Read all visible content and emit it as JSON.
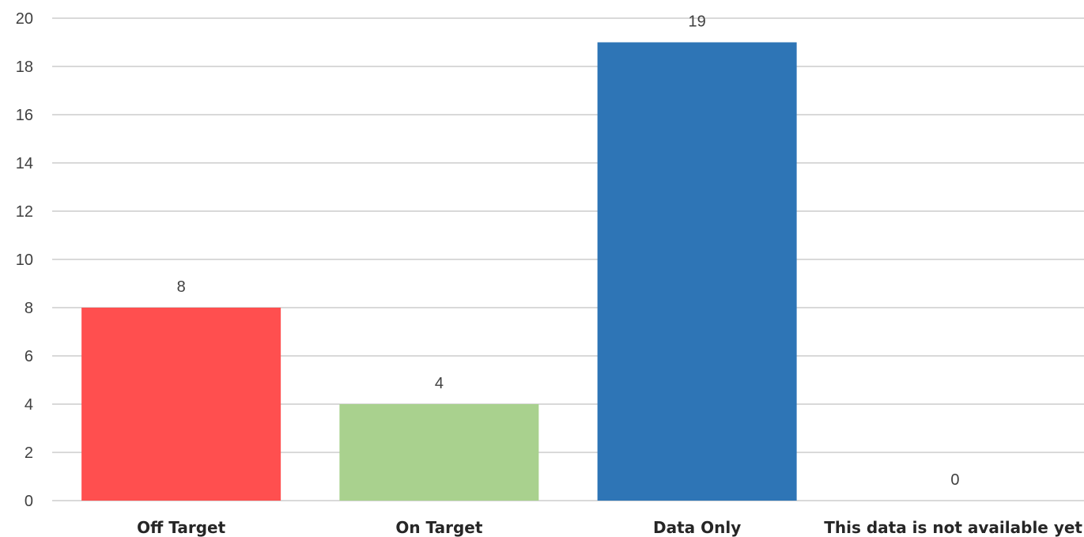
{
  "chart_data": {
    "type": "bar",
    "categories": [
      "Off Target",
      "On Target",
      "Data Only",
      "This data is not available yet"
    ],
    "values": [
      8,
      4,
      19,
      0
    ],
    "colors": [
      "#ff4f4f",
      "#a9d18e",
      "#2e75b6",
      "#2e75b6"
    ],
    "ylim": [
      0,
      20
    ],
    "ytick_step": 2,
    "title": "",
    "xlabel": "",
    "ylabel": "",
    "grid": true,
    "legend": "none",
    "data_labels": true
  }
}
